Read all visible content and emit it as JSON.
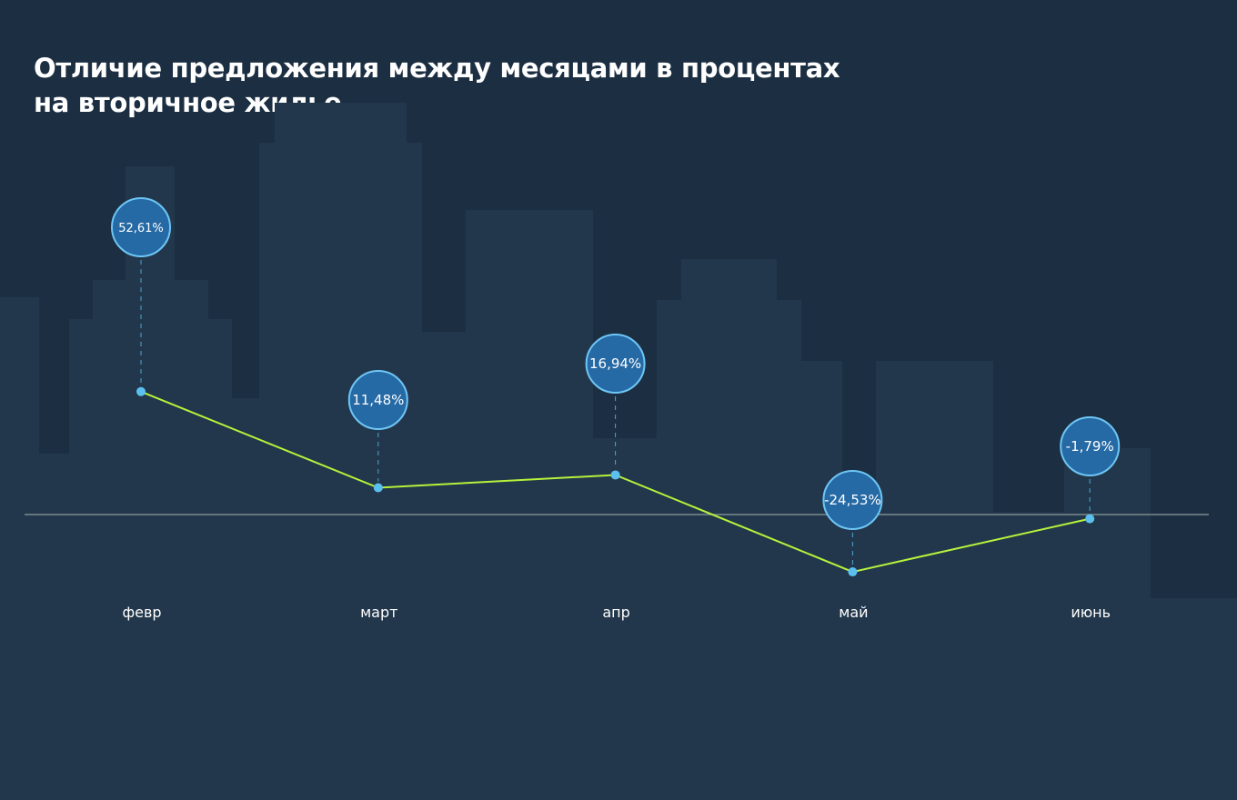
{
  "title": {
    "line1": "Отличие предложения между месяцами в процентах",
    "line2": "на вторичное жилье"
  },
  "colors": {
    "background": "#1c2f42",
    "buildings": "#22374b",
    "line": "#b6f23c",
    "point": "#5bc0f0",
    "bubble_fill": "#2569a5",
    "bubble_stroke": "#6ec6f5",
    "baseline": "#7b8a90"
  },
  "chart_data": {
    "type": "line",
    "title": "Отличие предложения между месяцами в процентах на вторичное жилье",
    "categories": [
      "февр",
      "март",
      "апр",
      "май",
      "июнь"
    ],
    "series": [
      {
        "values": [
          52.61,
          11.48,
          16.94,
          -24.53,
          -1.79
        ],
        "labels": [
          "52,61%",
          "11,48%",
          "16,94%",
          "-24,53%",
          "-1,79%"
        ]
      }
    ],
    "baseline": 0,
    "grid": false,
    "legend": "none"
  }
}
